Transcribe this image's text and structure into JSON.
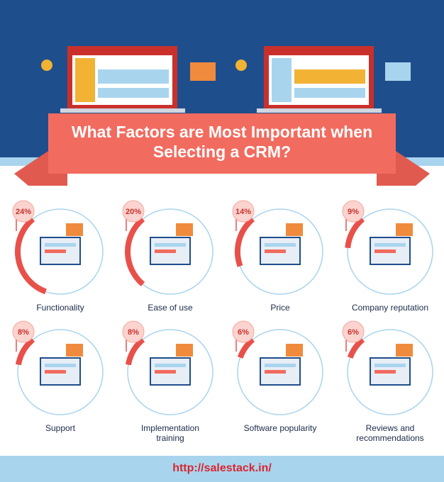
{
  "title": "What Factors are Most Important when Selecting a CRM?",
  "factors": [
    {
      "value": 24,
      "value_label": "24%",
      "label": "Functionality"
    },
    {
      "value": 20,
      "value_label": "20%",
      "label": "Ease of use"
    },
    {
      "value": 14,
      "value_label": "14%",
      "label": "Price"
    },
    {
      "value": 9,
      "value_label": "9%",
      "label": "Company reputation"
    },
    {
      "value": 8,
      "value_label": "8%",
      "label": "Support"
    },
    {
      "value": 8,
      "value_label": "8%",
      "label": "Implementation training"
    },
    {
      "value": 6,
      "value_label": "6%",
      "label": "Software popularity"
    },
    {
      "value": 6,
      "value_label": "6%",
      "label": "Reviews and recommendations"
    }
  ],
  "footer": "http://salestack.in/"
}
